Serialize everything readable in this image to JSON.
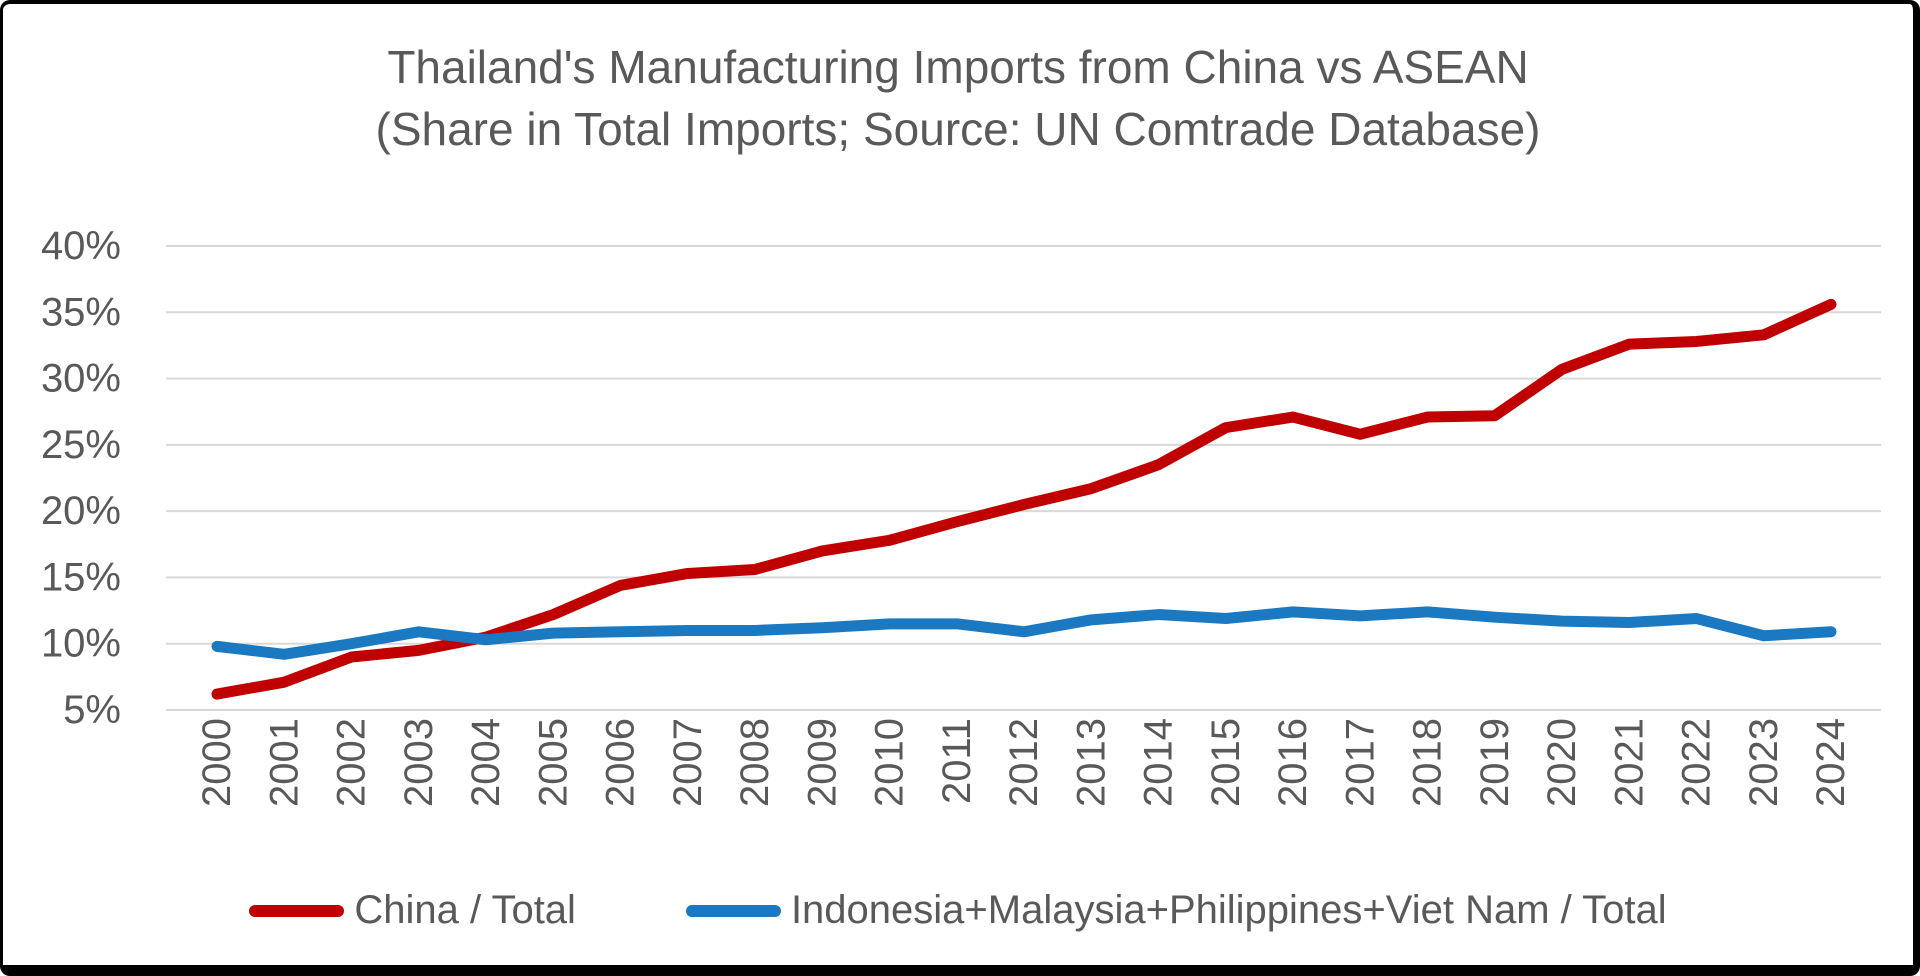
{
  "title": {
    "line1": "Thailand's Manufacturing Imports from China vs ASEAN",
    "line2": "(Share in Total Imports; Source: UN Comtrade Database)"
  },
  "legend": [
    {
      "label": "China / Total",
      "color": "#C00000"
    },
    {
      "label": "Indonesia+Malaysia+Philippines+Viet Nam / Total",
      "color": "#1B79C2"
    }
  ],
  "colors": {
    "text": "#595959",
    "gridline": "#D9D9D9",
    "background": "#FFFFFF",
    "frame": "#000000",
    "china_series": "#C00000",
    "asean_series": "#1B79C2"
  },
  "chart_data": {
    "type": "line",
    "title": "Thailand's Manufacturing Imports from China vs ASEAN",
    "subtitle": "(Share in Total Imports; Source: UN Comtrade Database)",
    "xlabel": "",
    "ylabel": "",
    "x": [
      2000,
      2001,
      2002,
      2003,
      2004,
      2005,
      2006,
      2007,
      2008,
      2009,
      2010,
      2011,
      2012,
      2013,
      2014,
      2015,
      2016,
      2017,
      2018,
      2019,
      2020,
      2021,
      2022,
      2023,
      2024
    ],
    "series": [
      {
        "name": "China / Total",
        "color": "#C00000",
        "values": [
          6.2,
          7.1,
          9.0,
          9.5,
          10.5,
          12.2,
          14.4,
          15.3,
          15.6,
          17.0,
          17.8,
          19.2,
          20.5,
          21.7,
          23.5,
          26.3,
          27.1,
          25.8,
          27.1,
          27.2,
          30.7,
          32.6,
          32.8,
          33.3,
          35.6
        ]
      },
      {
        "name": "Indonesia+Malaysia+Philippines+Viet Nam / Total",
        "color": "#1B79C2",
        "values": [
          9.8,
          9.2,
          10.0,
          10.9,
          10.3,
          10.8,
          10.9,
          11.0,
          11.0,
          11.2,
          11.5,
          11.5,
          10.9,
          11.8,
          12.2,
          11.9,
          12.4,
          12.1,
          12.4,
          12.0,
          11.7,
          11.6,
          11.9,
          10.6,
          10.9
        ]
      }
    ],
    "ylim": [
      5,
      40
    ],
    "y_tick_values": [
      5,
      10,
      15,
      20,
      25,
      30,
      35,
      40
    ],
    "y_ticks": [
      "5%",
      "10%",
      "15%",
      "20%",
      "25%",
      "30%",
      "35%",
      "40%"
    ],
    "grid": true,
    "legend_position": "bottom",
    "x_tick_rotation": -90
  }
}
